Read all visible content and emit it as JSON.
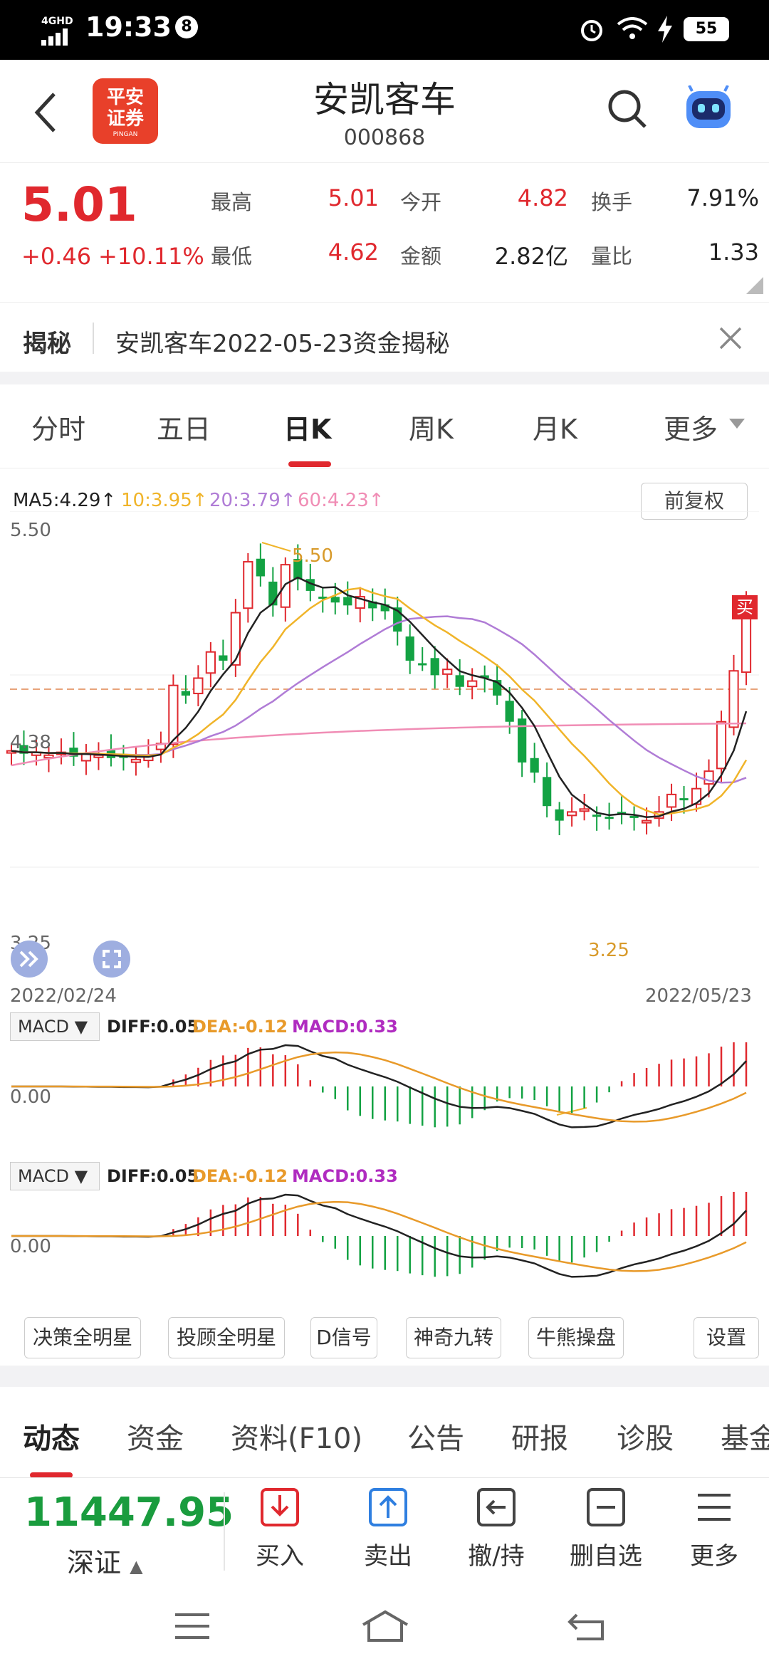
{
  "status": {
    "network": "4GHD",
    "time": "19:33",
    "notif_count": "8",
    "battery": "55"
  },
  "header": {
    "logo_text_line1": "平安",
    "logo_text_line2": "证券",
    "logo_sub": "PINGAN",
    "stock_name": "安凯客车",
    "stock_code": "000868"
  },
  "quote": {
    "price": "5.01",
    "change": "+0.46",
    "change_pct": "+10.11%",
    "high_label": "最高",
    "high": "5.01",
    "open_label": "今开",
    "open": "4.82",
    "turnover_label": "换手",
    "turnover": "7.91%",
    "low_label": "最低",
    "low": "4.62",
    "amount_label": "金额",
    "amount": "2.82亿",
    "vol_ratio_label": "量比",
    "vol_ratio": "1.33"
  },
  "reveal": {
    "label": "揭秘",
    "text": "安凯客车2022-05-23资金揭秘"
  },
  "period_tabs": [
    "分时",
    "五日",
    "日K",
    "周K",
    "月K",
    "更多"
  ],
  "chart": {
    "ma5": "MA5:4.29↑",
    "ma10": "10:3.95↑",
    "ma20": "20:3.79↑",
    "ma60": "60:4.23↑",
    "adjust_button": "前复权",
    "y_top": "5.50",
    "y_mid": "4.38",
    "y_bot": "3.25",
    "high_marker": "5.50",
    "low_marker": "3.25",
    "date_start": "2022/02/24",
    "date_end": "2022/05/23",
    "buy_tag": "买",
    "colors": {
      "up": "#e0282e",
      "down": "#13a243",
      "ma5": "#222222",
      "ma10": "#f0b429",
      "ma20": "#b07cd6",
      "ma60": "#f08db5"
    }
  },
  "macd": [
    {
      "selector": "MACD",
      "diff": "DIFF:0.05",
      "dea": "DEA:-0.12",
      "macd": "MACD:0.33",
      "zero_label": "0.00"
    },
    {
      "selector": "MACD",
      "diff": "DIFF:0.05",
      "dea": "DEA:-0.12",
      "macd": "MACD:0.33",
      "zero_label": "0.00"
    }
  ],
  "tools": [
    "决策全明星",
    "投顾全明星",
    "D信号",
    "神奇九转",
    "牛熊操盘",
    "设置"
  ],
  "info_tabs": [
    "动态",
    "资金",
    "资料(F10)",
    "公告",
    "研报",
    "诊股",
    "基金"
  ],
  "index": {
    "value": "11447.95",
    "name": "深证"
  },
  "actions": [
    {
      "label": "买入",
      "icon": "buy-icon"
    },
    {
      "label": "卖出",
      "icon": "sell-icon"
    },
    {
      "label": "撤/持",
      "icon": "cancel-hold-icon"
    },
    {
      "label": "删自选",
      "icon": "remove-watch-icon"
    },
    {
      "label": "更多",
      "icon": "more-icon"
    }
  ]
}
